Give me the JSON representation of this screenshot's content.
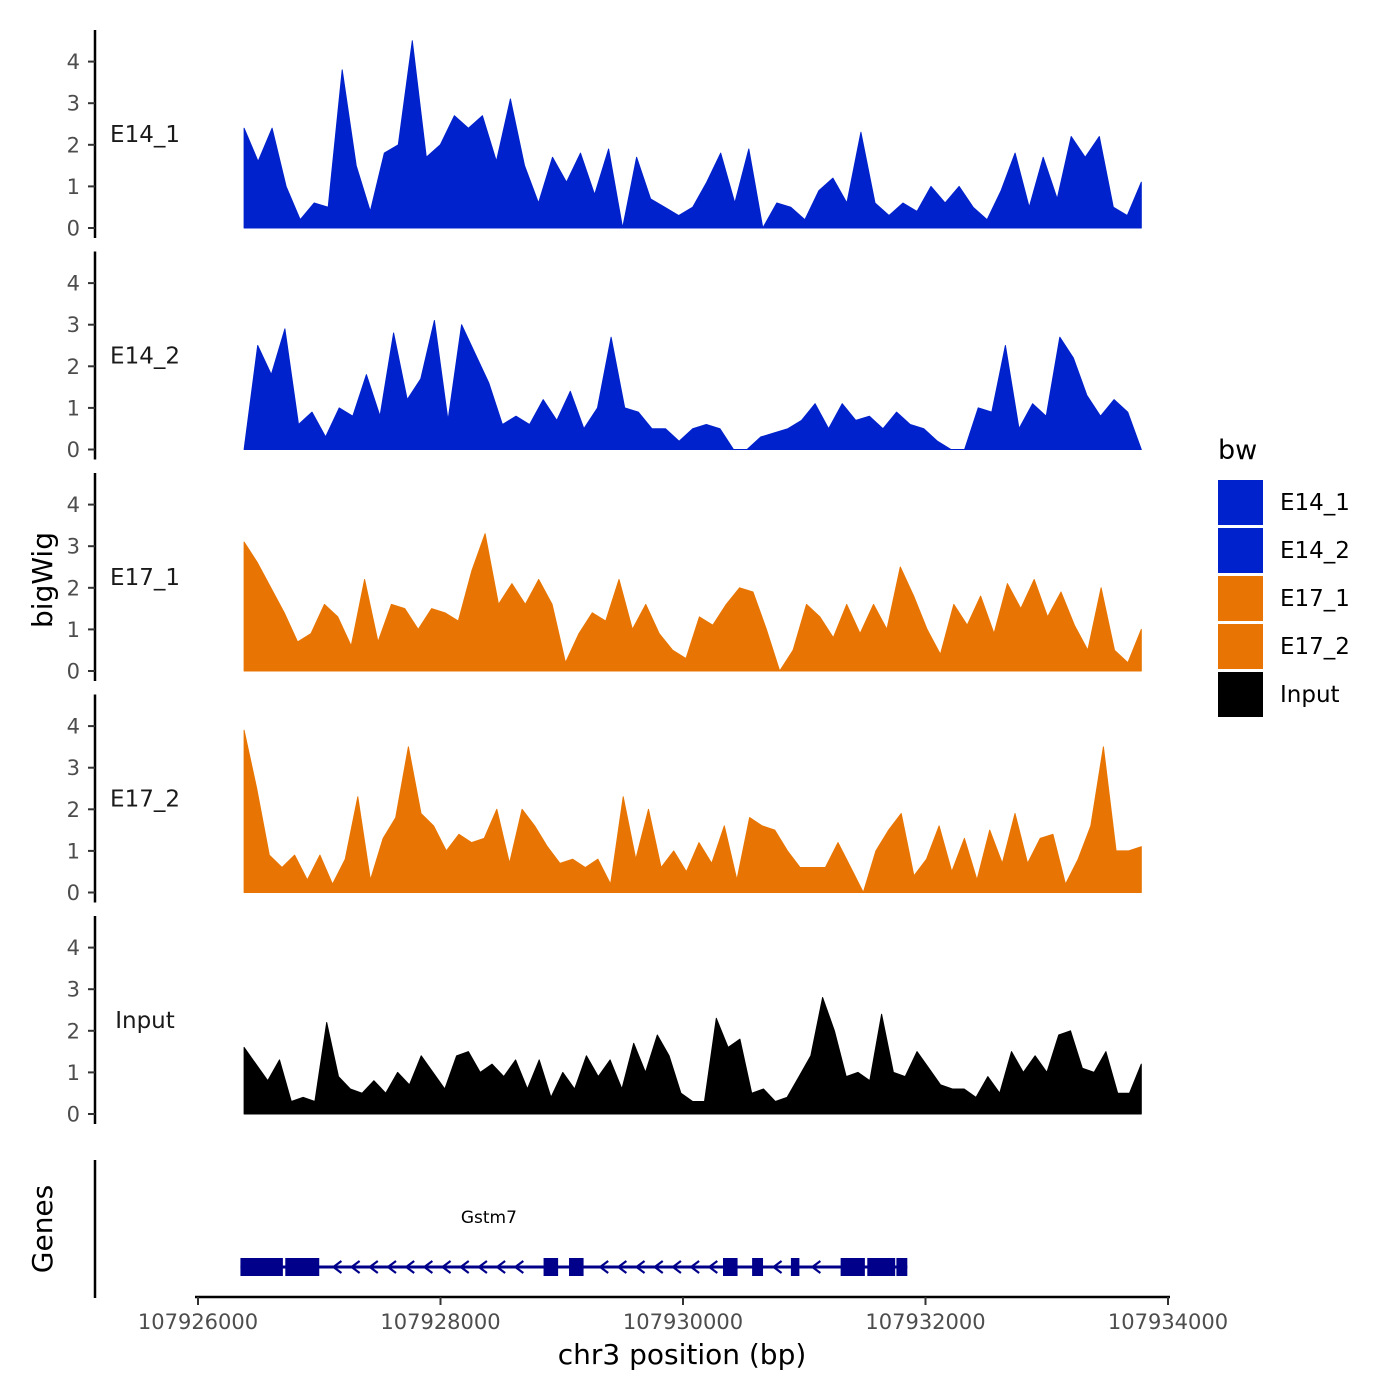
{
  "chart_data": {
    "type": "area",
    "title": "",
    "ylabel": "bigWig",
    "xlabel": "chr3 position (bp)",
    "xlim": [
      107926000,
      107934000
    ],
    "ylim": [
      0,
      4.5
    ],
    "region": [
      107926380,
      107933780
    ],
    "y_ticks": [
      "0",
      "1",
      "2",
      "3",
      "4"
    ],
    "x_ticks": [
      {
        "value": 107926000,
        "label": "107926000"
      },
      {
        "value": 107928000,
        "label": "107928000"
      },
      {
        "value": 107930000,
        "label": "107930000"
      },
      {
        "value": 107932000,
        "label": "107932000"
      },
      {
        "value": 107934000,
        "label": "107934000"
      }
    ],
    "series": [
      {
        "name": "E14_1",
        "color": "#0022CC",
        "values": [
          2.4,
          1.6,
          2.4,
          1.0,
          0.2,
          0.6,
          0.5,
          3.8,
          1.5,
          0.4,
          1.8,
          2.0,
          4.5,
          1.7,
          2.0,
          2.7,
          2.4,
          2.7,
          1.6,
          3.1,
          1.5,
          0.6,
          1.7,
          1.1,
          1.8,
          0.8,
          1.9,
          0.0,
          1.7,
          0.7,
          0.5,
          0.3,
          0.5,
          1.1,
          1.8,
          0.6,
          1.9,
          0.0,
          0.6,
          0.5,
          0.2,
          0.9,
          1.2,
          0.6,
          2.3,
          0.6,
          0.3,
          0.6,
          0.4,
          1.0,
          0.6,
          1.0,
          0.5,
          0.2,
          0.9,
          1.8,
          0.5,
          1.7,
          0.7,
          2.2,
          1.7,
          2.2,
          0.5,
          0.3,
          1.1
        ]
      },
      {
        "name": "E14_2",
        "color": "#0022CC",
        "values": [
          0.0,
          2.5,
          1.8,
          2.9,
          0.6,
          0.9,
          0.3,
          1.0,
          0.8,
          1.8,
          0.8,
          2.8,
          1.2,
          1.7,
          3.1,
          0.7,
          3.0,
          2.3,
          1.6,
          0.6,
          0.8,
          0.6,
          1.2,
          0.7,
          1.4,
          0.5,
          1.0,
          2.7,
          1.0,
          0.9,
          0.5,
          0.5,
          0.2,
          0.5,
          0.6,
          0.5,
          0.0,
          0.0,
          0.3,
          0.4,
          0.5,
          0.7,
          1.1,
          0.5,
          1.1,
          0.7,
          0.8,
          0.5,
          0.9,
          0.6,
          0.5,
          0.2,
          0.0,
          0.0,
          1.0,
          0.9,
          2.5,
          0.5,
          1.1,
          0.8,
          2.7,
          2.2,
          1.3,
          0.8,
          1.2,
          0.9,
          0.0
        ]
      },
      {
        "name": "E17_1",
        "color": "#E87503",
        "values": [
          3.1,
          2.6,
          2.0,
          1.4,
          0.7,
          0.9,
          1.6,
          1.3,
          0.6,
          2.2,
          0.7,
          1.6,
          1.5,
          1.0,
          1.5,
          1.4,
          1.2,
          2.4,
          3.3,
          1.6,
          2.1,
          1.6,
          2.2,
          1.6,
          0.2,
          0.9,
          1.4,
          1.2,
          2.2,
          1.0,
          1.6,
          0.9,
          0.5,
          0.3,
          1.3,
          1.1,
          1.6,
          2.0,
          1.9,
          1.0,
          0.0,
          0.5,
          1.6,
          1.3,
          0.8,
          1.6,
          0.9,
          1.6,
          1.0,
          2.5,
          1.8,
          1.0,
          0.4,
          1.6,
          1.1,
          1.8,
          0.9,
          2.1,
          1.5,
          2.2,
          1.3,
          1.9,
          1.1,
          0.5,
          2.0,
          0.5,
          0.2,
          1.0
        ]
      },
      {
        "name": "E17_2",
        "color": "#E87503",
        "values": [
          3.9,
          2.5,
          0.9,
          0.6,
          0.9,
          0.3,
          0.9,
          0.2,
          0.8,
          2.3,
          0.3,
          1.3,
          1.8,
          3.5,
          1.9,
          1.6,
          1.0,
          1.4,
          1.2,
          1.3,
          2.0,
          0.7,
          2.0,
          1.6,
          1.1,
          0.7,
          0.8,
          0.6,
          0.8,
          0.2,
          2.3,
          0.8,
          2.0,
          0.6,
          1.0,
          0.5,
          1.2,
          0.7,
          1.6,
          0.3,
          1.8,
          1.6,
          1.5,
          1.0,
          0.6,
          0.6,
          0.6,
          1.2,
          0.6,
          0.0,
          1.0,
          1.5,
          1.9,
          0.4,
          0.8,
          1.6,
          0.5,
          1.3,
          0.3,
          1.5,
          0.7,
          1.9,
          0.7,
          1.3,
          1.4,
          0.2,
          0.8,
          1.6,
          3.5,
          1.0,
          1.0,
          1.1
        ]
      },
      {
        "name": "Input",
        "color": "#000000",
        "values": [
          1.6,
          1.2,
          0.8,
          1.3,
          0.3,
          0.4,
          0.3,
          2.2,
          0.9,
          0.6,
          0.5,
          0.8,
          0.5,
          1.0,
          0.7,
          1.4,
          1.0,
          0.6,
          1.4,
          1.5,
          1.0,
          1.2,
          0.9,
          1.3,
          0.6,
          1.3,
          0.4,
          1.0,
          0.6,
          1.4,
          0.9,
          1.3,
          0.6,
          1.7,
          1.0,
          1.9,
          1.4,
          0.5,
          0.3,
          0.3,
          2.3,
          1.6,
          1.8,
          0.5,
          0.6,
          0.3,
          0.4,
          0.9,
          1.4,
          2.8,
          2.0,
          0.9,
          1.0,
          0.8,
          2.4,
          1.0,
          0.9,
          1.5,
          1.1,
          0.7,
          0.6,
          0.6,
          0.4,
          0.9,
          0.5,
          1.5,
          1.0,
          1.4,
          1.0,
          1.9,
          2.0,
          1.1,
          1.0,
          1.5,
          0.5,
          0.5,
          1.2
        ]
      }
    ],
    "legend": {
      "title": "bw",
      "position": "right",
      "entries": [
        "E14_1",
        "E14_2",
        "E17_1",
        "E17_2",
        "Input"
      ]
    },
    "genes_panel": {
      "label": "Genes",
      "gene_name": "Gstm7",
      "strand": "-",
      "color": "#00008B",
      "start": 107926350,
      "end": 107931850,
      "exons": [
        [
          107926350,
          107926700
        ],
        [
          107926720,
          107927000
        ],
        [
          107928850,
          107928970
        ],
        [
          107929060,
          107929180
        ],
        [
          107930330,
          107930450
        ],
        [
          107930570,
          107930660
        ],
        [
          107930890,
          107930960
        ],
        [
          107931300,
          107931500
        ],
        [
          107931520,
          107931750
        ],
        [
          107931760,
          107931850
        ]
      ],
      "arrows_at": [
        107927150,
        107927300,
        107927450,
        107927600,
        107927750,
        107927900,
        107928050,
        107928200,
        107928350,
        107928500,
        107928650,
        107929350,
        107929500,
        107929650,
        107929800,
        107929950,
        107930100,
        107930250,
        107930780,
        107931100
      ]
    }
  }
}
